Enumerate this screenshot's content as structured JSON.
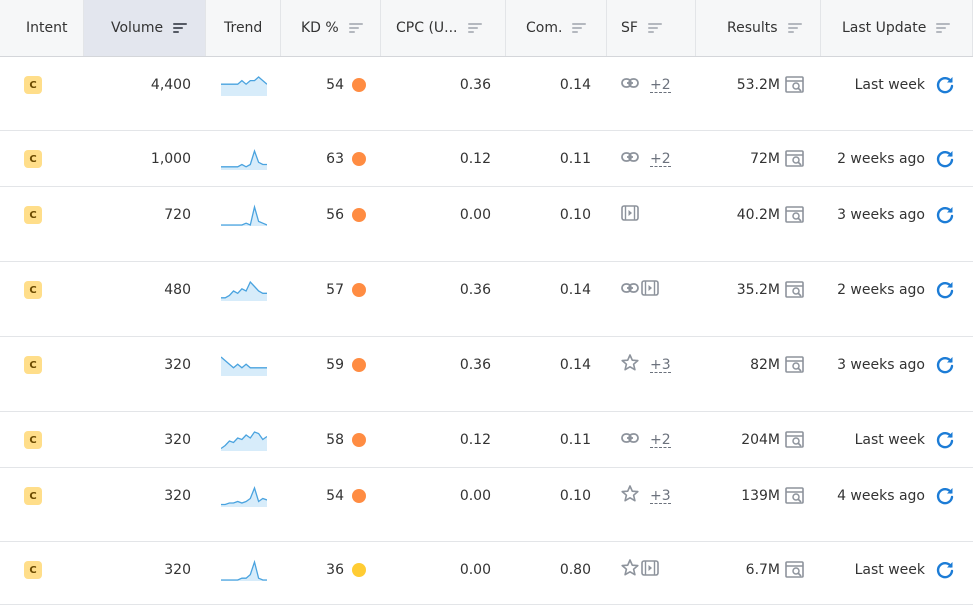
{
  "columns": [
    {
      "key": "intent",
      "label": "Intent",
      "sortable": false,
      "active": false
    },
    {
      "key": "volume",
      "label": "Volume",
      "sortable": true,
      "active": true
    },
    {
      "key": "trend",
      "label": "Trend",
      "sortable": false,
      "active": false
    },
    {
      "key": "kd",
      "label": "KD %",
      "sortable": true,
      "active": false
    },
    {
      "key": "cpc",
      "label": "CPC (U...",
      "sortable": true,
      "active": false
    },
    {
      "key": "com",
      "label": "Com.",
      "sortable": true,
      "active": false
    },
    {
      "key": "sf",
      "label": "SF",
      "sortable": true,
      "active": false
    },
    {
      "key": "results",
      "label": "Results",
      "sortable": true,
      "active": false
    },
    {
      "key": "update",
      "label": "Last Update",
      "sortable": true,
      "active": false
    }
  ],
  "colors": {
    "accent": "#1c7cd6",
    "kd_orange": "#ff8c42",
    "kd_yellow": "#ffcc33",
    "intent_badge": "#ffde8a",
    "trend_line": "#4aa3df",
    "trend_fill": "#d7ecfa"
  },
  "rows": [
    {
      "intent": "C",
      "volume": "4,400",
      "trend": [
        3,
        3,
        3,
        3,
        3,
        4,
        3,
        4,
        4,
        5,
        4,
        3
      ],
      "kd": "54",
      "kd_color": "#ff8c42",
      "cpc": "0.36",
      "com": "0.14",
      "sf": [
        "link-icon"
      ],
      "sf_more": "+2",
      "results": "53.2M",
      "update": "Last week"
    },
    {
      "intent": "C",
      "volume": "1,000",
      "trend": [
        1,
        1,
        1,
        1,
        1,
        2,
        1,
        2,
        8,
        3,
        2,
        2
      ],
      "kd": "63",
      "kd_color": "#ff8c42",
      "cpc": "0.12",
      "com": "0.11",
      "sf": [
        "link-icon"
      ],
      "sf_more": "+2",
      "results": "72M",
      "update": "2 weeks ago"
    },
    {
      "intent": "C",
      "volume": "720",
      "trend": [
        0,
        0,
        0,
        0,
        0,
        0,
        1,
        0,
        10,
        2,
        1,
        0
      ],
      "kd": "56",
      "kd_color": "#ff8c42",
      "cpc": "0.00",
      "com": "0.10",
      "sf": [
        "video-icon"
      ],
      "sf_more": "",
      "results": "40.2M",
      "update": "3 weeks ago"
    },
    {
      "intent": "C",
      "volume": "480",
      "trend": [
        1,
        1,
        2,
        4,
        3,
        5,
        4,
        8,
        6,
        4,
        3,
        3
      ],
      "kd": "57",
      "kd_color": "#ff8c42",
      "cpc": "0.36",
      "com": "0.14",
      "sf": [
        "link-icon",
        "video-icon"
      ],
      "sf_more": "",
      "results": "35.2M",
      "update": "2 weeks ago"
    },
    {
      "intent": "C",
      "volume": "320",
      "trend": [
        5,
        4,
        3,
        2,
        3,
        2,
        3,
        2,
        2,
        2,
        2,
        2
      ],
      "kd": "59",
      "kd_color": "#ff8c42",
      "cpc": "0.36",
      "com": "0.14",
      "sf": [
        "star-icon"
      ],
      "sf_more": "+3",
      "results": "82M",
      "update": "3 weeks ago"
    },
    {
      "intent": "C",
      "volume": "320",
      "trend": [
        1,
        3,
        6,
        5,
        8,
        7,
        10,
        8,
        12,
        11,
        7,
        9
      ],
      "kd": "58",
      "kd_color": "#ff8c42",
      "cpc": "0.12",
      "com": "0.11",
      "sf": [
        "link-icon"
      ],
      "sf_more": "+2",
      "results": "204M",
      "update": "Last week"
    },
    {
      "intent": "C",
      "volume": "320",
      "trend": [
        1,
        1,
        2,
        2,
        3,
        2,
        3,
        5,
        12,
        3,
        5,
        4
      ],
      "kd": "54",
      "kd_color": "#ff8c42",
      "cpc": "0.00",
      "com": "0.10",
      "sf": [
        "star-icon"
      ],
      "sf_more": "+3",
      "results": "139M",
      "update": "4 weeks ago"
    },
    {
      "intent": "C",
      "volume": "320",
      "trend": [
        0,
        0,
        0,
        0,
        0,
        1,
        1,
        3,
        10,
        1,
        0,
        0
      ],
      "kd": "36",
      "kd_color": "#ffcc33",
      "cpc": "0.00",
      "com": "0.80",
      "sf": [
        "star-icon",
        "video-icon"
      ],
      "sf_more": "",
      "results": "6.7M",
      "update": "Last week"
    }
  ]
}
